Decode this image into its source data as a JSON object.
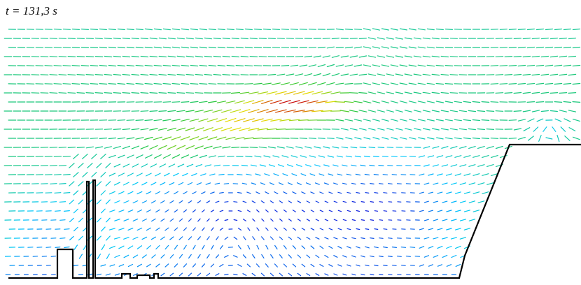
{
  "figure": {
    "time_label": "t = 131,3 s"
  },
  "colors": {
    "background": "#ffffff",
    "wall": "#000000",
    "low_speed": "#1a1ae6",
    "mid_speed": "#00c8ff",
    "green": "#33cc33",
    "yellow": "#e6e600",
    "high_speed": "#cc0000"
  }
}
